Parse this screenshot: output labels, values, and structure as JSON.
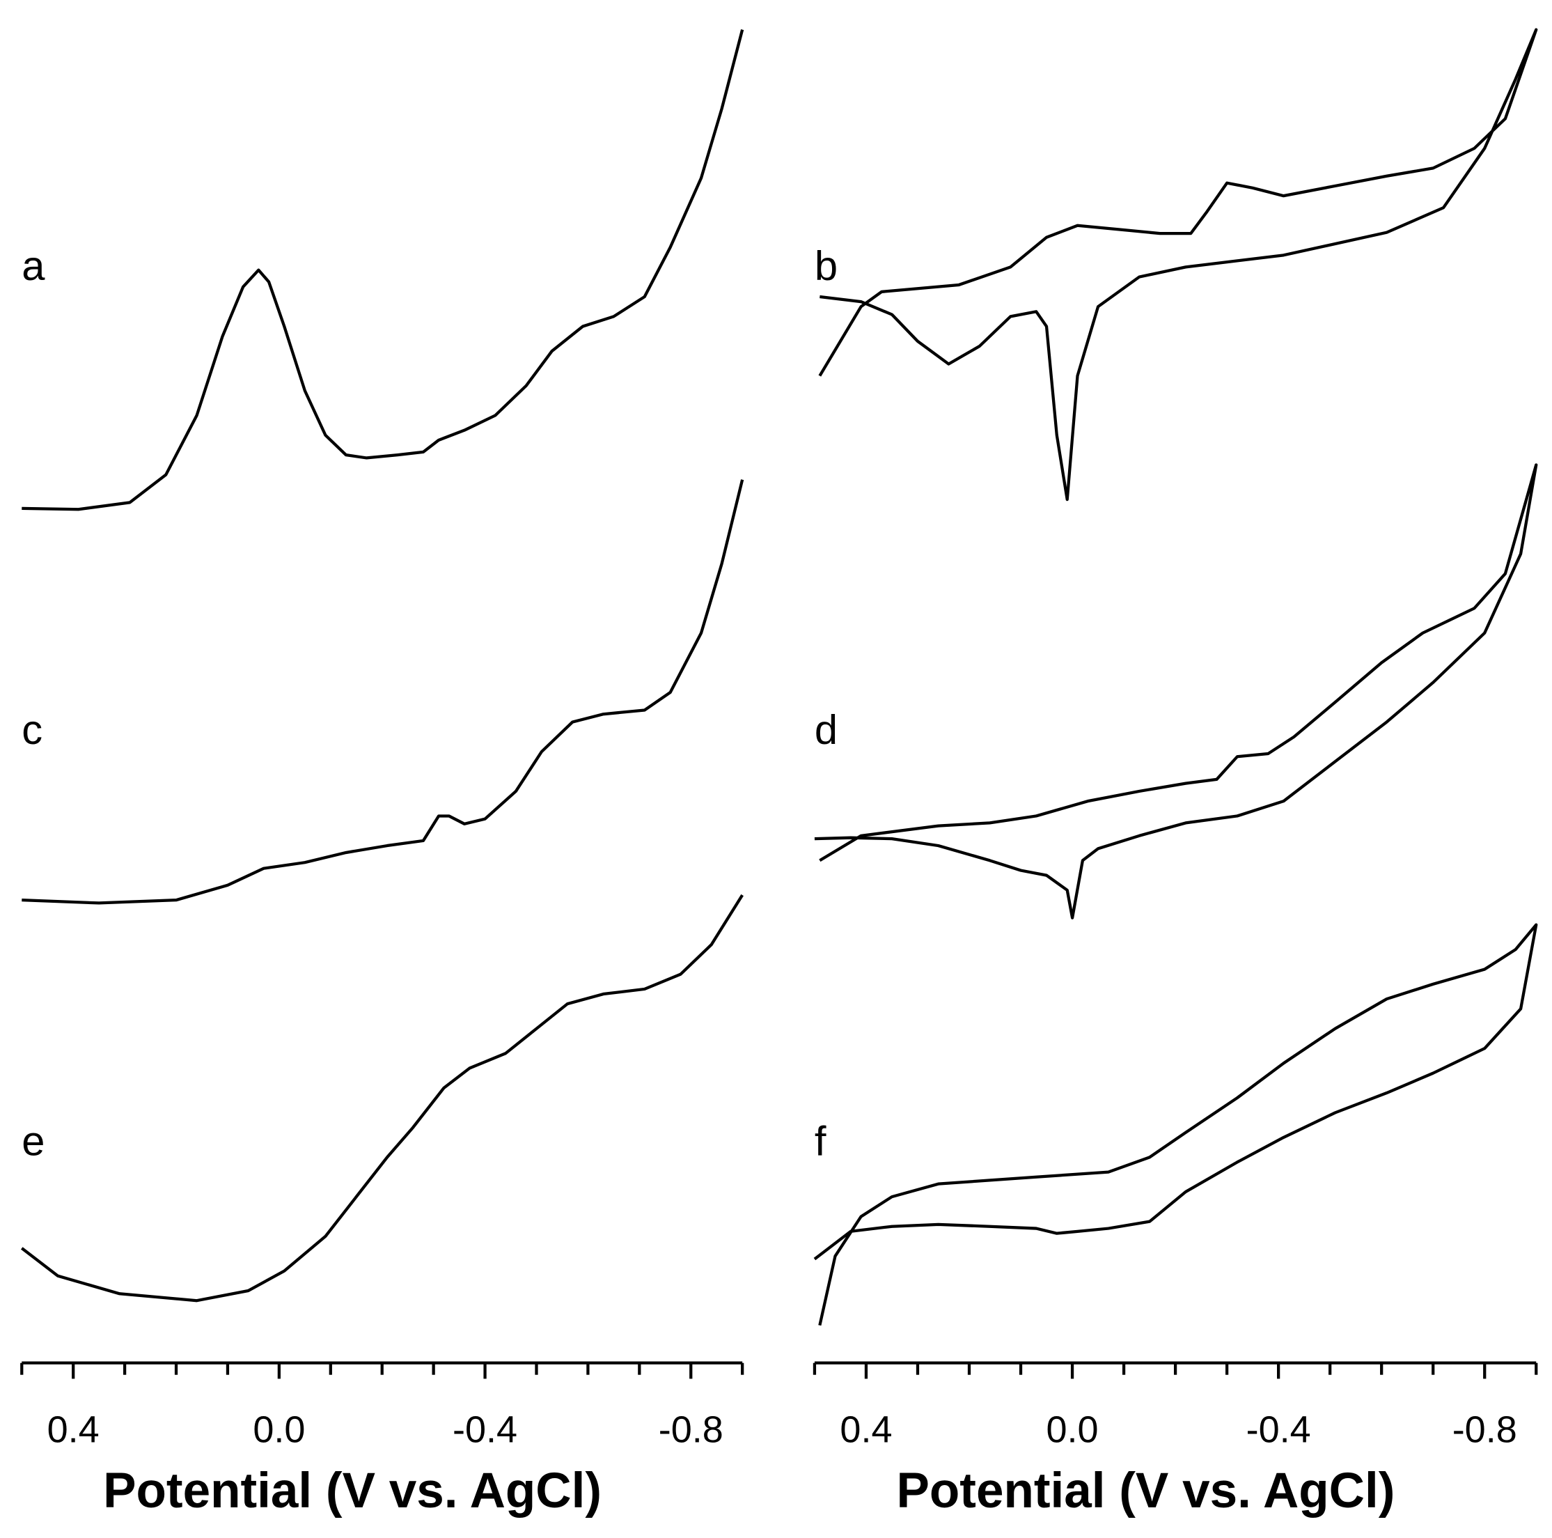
{
  "chart_data": [
    {
      "type": "line",
      "label": "a",
      "color": "#000000",
      "xlim": [
        0.5,
        -0.9
      ],
      "ylim": [
        0,
        500
      ],
      "x": [
        0.5,
        0.39,
        0.29,
        0.22,
        0.16,
        0.11,
        0.07,
        0.04,
        0.02,
        -0.01,
        -0.05,
        -0.09,
        -0.13,
        -0.17,
        -0.23,
        -0.28,
        -0.31,
        -0.36,
        -0.42,
        -0.48,
        -0.53,
        -0.59,
        -0.65,
        -0.71,
        -0.76,
        -0.82,
        -0.86,
        -0.9
      ],
      "values": [
        11,
        10,
        17,
        45,
        105,
        185,
        235,
        252,
        240,
        195,
        130,
        85,
        65,
        62,
        65,
        68,
        80,
        90,
        105,
        135,
        170,
        195,
        205,
        225,
        275,
        345,
        415,
        495
      ]
    },
    {
      "type": "line",
      "label": "b",
      "color": "#000000",
      "xlim": [
        0.5,
        -0.9
      ],
      "ylim": [
        0,
        500
      ],
      "x": [
        0.49,
        0.41,
        0.37,
        0.22,
        0.12,
        0.05,
        -0.01,
        -0.09,
        -0.17,
        -0.23,
        -0.26,
        -0.3,
        -0.35,
        -0.41,
        -0.51,
        -0.61,
        -0.7,
        -0.78,
        -0.84,
        -0.9,
        -0.86,
        -0.8,
        -0.72,
        -0.61,
        -0.41,
        -0.22,
        -0.13,
        -0.05,
        -0.01,
        0.01,
        0.03,
        0.05,
        0.07,
        0.12,
        0.18,
        0.24,
        0.3,
        0.35,
        0.41,
        0.49
      ],
      "values": [
        140,
        210,
        225,
        232,
        250,
        280,
        292,
        288,
        284,
        284,
        305,
        335,
        330,
        322,
        332,
        342,
        350,
        370,
        400,
        490,
        440,
        370,
        310,
        285,
        262,
        250,
        240,
        210,
        140,
        15,
        80,
        190,
        205,
        200,
        170,
        152,
        175,
        202,
        215,
        220
      ]
    },
    {
      "type": "line",
      "label": "c",
      "color": "#000000",
      "xlim": [
        0.5,
        -0.9
      ],
      "ylim": [
        0,
        500
      ],
      "x": [
        0.5,
        0.35,
        0.2,
        0.1,
        0.03,
        -0.05,
        -0.13,
        -0.21,
        -0.28,
        -0.31,
        -0.33,
        -0.36,
        -0.4,
        -0.46,
        -0.51,
        -0.57,
        -0.63,
        -0.71,
        -0.76,
        -0.82,
        -0.86,
        -0.9
      ],
      "values": [
        15,
        12,
        15,
        30,
        47,
        53,
        63,
        70,
        75,
        100,
        100,
        92,
        97,
        125,
        165,
        195,
        203,
        207,
        225,
        285,
        355,
        440
      ]
    },
    {
      "type": "line",
      "label": "d",
      "color": "#000000",
      "xlim": [
        0.5,
        -0.9
      ],
      "ylim": [
        0,
        500
      ],
      "x": [
        0.49,
        0.41,
        0.26,
        0.16,
        0.07,
        -0.03,
        -0.13,
        -0.22,
        -0.28,
        -0.32,
        -0.38,
        -0.43,
        -0.51,
        -0.6,
        -0.68,
        -0.78,
        -0.84,
        -0.9,
        -0.87,
        -0.8,
        -0.7,
        -0.61,
        -0.51,
        -0.41,
        -0.32,
        -0.22,
        -0.13,
        -0.05,
        -0.02,
        0.0,
        0.01,
        0.05,
        0.1,
        0.16,
        0.26,
        0.35,
        0.43,
        0.5
      ],
      "values": [
        70,
        95,
        105,
        108,
        115,
        130,
        140,
        148,
        152,
        175,
        178,
        195,
        230,
        270,
        300,
        325,
        360,
        470,
        380,
        300,
        250,
        210,
        170,
        130,
        115,
        108,
        95,
        82,
        70,
        12,
        40,
        55,
        60,
        70,
        85,
        92,
        93,
        92
      ]
    },
    {
      "type": "line",
      "label": "e",
      "color": "#000000",
      "xlim": [
        0.5,
        -0.9
      ],
      "ylim": [
        0,
        500
      ],
      "xlabel": "Potential (V vs. AgCl)",
      "xticks": [
        0.4,
        {
          "value": 0,
          "label": "0.0"
        },
        -0.4,
        -0.8
      ],
      "xminorticks": [
        0.5,
        0.3,
        0.2,
        0.1,
        -0.1,
        -0.2,
        -0.3,
        -0.5,
        -0.6,
        -0.7,
        -0.9
      ],
      "x": [
        0.5,
        0.43,
        0.31,
        0.16,
        0.06,
        -0.01,
        -0.09,
        -0.15,
        -0.21,
        -0.26,
        -0.32,
        -0.37,
        -0.44,
        -0.5,
        -0.56,
        -0.63,
        -0.71,
        -0.78,
        -0.84,
        -0.9
      ],
      "values": [
        68,
        40,
        22,
        15,
        25,
        45,
        80,
        120,
        160,
        190,
        230,
        250,
        265,
        290,
        315,
        325,
        330,
        345,
        375,
        425
      ]
    },
    {
      "type": "line",
      "label": "f",
      "color": "#000000",
      "xlim": [
        0.5,
        -0.9
      ],
      "ylim": [
        0,
        500
      ],
      "xlabel": "Potential (V vs. AgCl)",
      "xticks": [
        0.4,
        {
          "value": 0,
          "label": "0.0"
        },
        -0.4,
        -0.8
      ],
      "xminorticks": [
        0.5,
        0.3,
        0.2,
        0.1,
        -0.1,
        -0.2,
        -0.3,
        -0.5,
        -0.6,
        -0.7,
        -0.9
      ],
      "x": [
        0.49,
        0.46,
        0.41,
        0.35,
        0.26,
        0.07,
        -0.07,
        -0.15,
        -0.22,
        -0.32,
        -0.41,
        -0.51,
        -0.61,
        -0.7,
        -0.8,
        -0.86,
        -0.9,
        -0.87,
        -0.8,
        -0.7,
        -0.61,
        -0.51,
        -0.41,
        -0.32,
        -0.22,
        -0.15,
        -0.07,
        -0.01,
        0.03,
        0.07,
        0.16,
        0.26,
        0.35,
        0.43,
        0.5
      ],
      "values": [
        10,
        80,
        120,
        140,
        153,
        160,
        165,
        180,
        205,
        240,
        275,
        310,
        340,
        355,
        370,
        390,
        415,
        330,
        290,
        265,
        245,
        225,
        200,
        175,
        145,
        115,
        108,
        105,
        103,
        108,
        110,
        112,
        110,
        105,
        77
      ]
    }
  ]
}
